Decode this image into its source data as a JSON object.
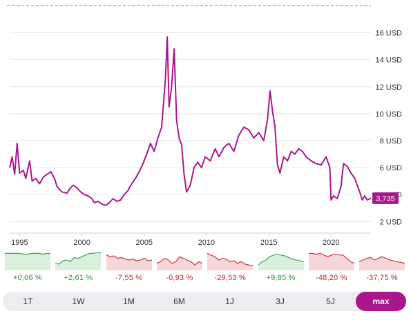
{
  "chart_data": {
    "type": "line",
    "title": "",
    "xlabel": "",
    "ylabel": "",
    "x_ticks": [
      "1995",
      "2000",
      "2005",
      "2010",
      "2015",
      "2020"
    ],
    "y_ticks": [
      "2 USD",
      "4 USD",
      "6 USD",
      "8 USD",
      "10 USD",
      "12 USD",
      "14 USD",
      "16 USD"
    ],
    "ylim": [
      1.4,
      17.0
    ],
    "xlim": [
      1994.2,
      2023.2
    ],
    "grid": true,
    "line_color": "#a8188b",
    "series": [
      {
        "name": "",
        "x": [
          1994.2,
          1994.4,
          1994.6,
          1994.8,
          1995.0,
          1995.3,
          1995.5,
          1995.8,
          1996.0,
          1996.3,
          1996.6,
          1996.9,
          1997.2,
          1997.5,
          1997.8,
          1998.0,
          1998.4,
          1998.8,
          1999.0,
          1999.3,
          1999.6,
          1999.9,
          2000.2,
          2000.5,
          2000.8,
          2001.0,
          2001.3,
          2001.6,
          2001.9,
          2002.2,
          2002.5,
          2002.8,
          2003.1,
          2003.4,
          2003.7,
          2004.0,
          2004.3,
          2004.6,
          2004.9,
          2005.2,
          2005.5,
          2005.8,
          2006.1,
          2006.4,
          2006.7,
          2006.85,
          2007.0,
          2007.2,
          2007.4,
          2007.6,
          2007.8,
          2008.0,
          2008.2,
          2008.4,
          2008.7,
          2009.0,
          2009.3,
          2009.6,
          2009.9,
          2010.3,
          2010.7,
          2011.0,
          2011.4,
          2011.8,
          2012.2,
          2012.6,
          2013.0,
          2013.4,
          2013.8,
          2014.2,
          2014.6,
          2014.9,
          2015.1,
          2015.3,
          2015.5,
          2015.7,
          2015.9,
          2016.2,
          2016.5,
          2016.8,
          2017.1,
          2017.4,
          2017.7,
          2018.0,
          2018.4,
          2018.8,
          2019.2,
          2019.6,
          2019.9,
          2020.0,
          2020.2,
          2020.5,
          2020.8,
          2021.0,
          2021.3,
          2021.6,
          2021.9,
          2022.1,
          2022.3,
          2022.5,
          2022.7,
          2022.9,
          2023.2
        ],
        "y": [
          6.0,
          6.8,
          5.5,
          7.8,
          5.6,
          5.8,
          5.2,
          6.5,
          5.0,
          5.2,
          4.8,
          5.3,
          5.5,
          5.7,
          5.2,
          4.6,
          4.2,
          4.1,
          4.4,
          4.7,
          4.5,
          4.2,
          4.0,
          3.9,
          3.7,
          3.4,
          3.5,
          3.3,
          3.2,
          3.4,
          3.7,
          3.5,
          3.6,
          4.0,
          4.3,
          4.8,
          5.2,
          5.7,
          6.3,
          7.0,
          7.8,
          7.2,
          8.2,
          9.0,
          12.5,
          15.7,
          10.5,
          12.0,
          14.8,
          9.5,
          8.2,
          7.7,
          5.5,
          4.2,
          4.7,
          6.0,
          6.4,
          6.0,
          6.8,
          6.5,
          7.4,
          6.8,
          7.5,
          7.8,
          7.2,
          8.4,
          9.0,
          8.8,
          8.2,
          8.6,
          8.0,
          9.6,
          11.7,
          10.2,
          9.0,
          6.2,
          5.6,
          6.8,
          6.5,
          7.2,
          7.0,
          7.4,
          7.2,
          6.8,
          6.5,
          6.3,
          6.2,
          6.8,
          6.0,
          3.6,
          3.9,
          3.7,
          4.6,
          6.3,
          6.1,
          5.6,
          5.2,
          4.7,
          4.2,
          3.6,
          3.9,
          3.6,
          3.735
        ]
      }
    ],
    "last_value_label": "3,735"
  },
  "performance": [
    {
      "label": "+0,06 %",
      "trend": "pos"
    },
    {
      "label": "+2,61 %",
      "trend": "pos"
    },
    {
      "label": "-7,55 %",
      "trend": "neg"
    },
    {
      "label": "-0,93 %",
      "trend": "neg"
    },
    {
      "label": "-29,53 %",
      "trend": "neg"
    },
    {
      "label": "+9,85 %",
      "trend": "pos"
    },
    {
      "label": "-48,20 %",
      "trend": "neg"
    },
    {
      "label": "-37,75 %",
      "trend": "neg"
    }
  ],
  "colors": {
    "positive_line": "#3aa655",
    "positive_fill": "#d9f0dc",
    "negative_line": "#c9353f",
    "negative_fill": "#f6d7d8",
    "accent": "#a8188b",
    "reference_dash": "#3aa655"
  },
  "ranges": [
    {
      "label": "1T",
      "active": false
    },
    {
      "label": "1W",
      "active": false
    },
    {
      "label": "1M",
      "active": false
    },
    {
      "label": "6M",
      "active": false
    },
    {
      "label": "1J",
      "active": false
    },
    {
      "label": "3J",
      "active": false
    },
    {
      "label": "5J",
      "active": false
    },
    {
      "label": "max",
      "active": true
    }
  ]
}
